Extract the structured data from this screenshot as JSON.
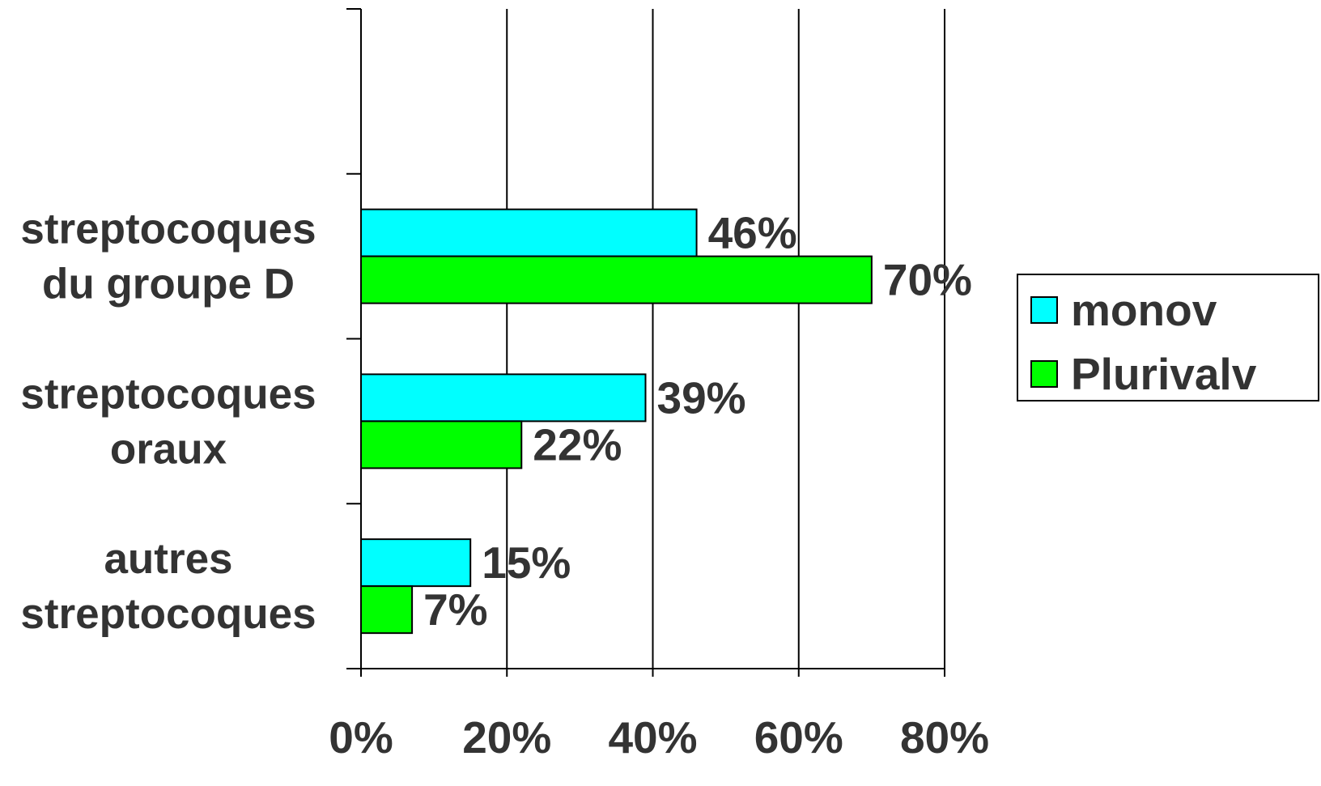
{
  "chart_data": {
    "type": "bar",
    "orientation": "horizontal",
    "title": "",
    "xlabel": "",
    "ylabel": "",
    "categories": [
      [
        "autres",
        "streptocoques"
      ],
      [
        "streptocoques",
        "oraux"
      ],
      [
        "streptocoques",
        "du groupe D"
      ]
    ],
    "series": [
      {
        "name": "monov",
        "color": "#00FFFF",
        "values": [
          15,
          39,
          46
        ],
        "labels": [
          "15%",
          "39%",
          "46%"
        ]
      },
      {
        "name": "Plurivalv",
        "color": "#00FF00",
        "values": [
          7,
          22,
          70
        ],
        "labels": [
          "7%",
          "22%",
          "70%"
        ]
      }
    ],
    "xlim": [
      0,
      80
    ],
    "xticks": [
      0,
      20,
      40,
      60,
      80
    ],
    "xtick_labels": [
      "0%",
      "20%",
      "40%",
      "60%",
      "80%"
    ],
    "empty_top_slot": true,
    "grid": "vertical",
    "legend": "right"
  }
}
